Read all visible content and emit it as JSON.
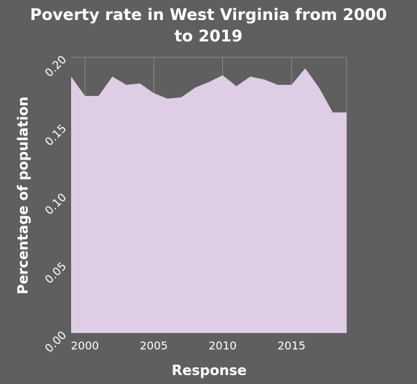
{
  "chart_data": {
    "type": "area",
    "title_lines": [
      "Poverty rate in West Virginia from 2000",
      "to 2019"
    ],
    "xlabel": "Response",
    "ylabel": "Percentage of population",
    "x": [
      1999,
      2000,
      2001,
      2002,
      2003,
      2004,
      2005,
      2006,
      2007,
      2008,
      2009,
      2010,
      2011,
      2012,
      2013,
      2014,
      2015,
      2016,
      2017,
      2018,
      2019
    ],
    "values": [
      0.186,
      0.172,
      0.172,
      0.186,
      0.18,
      0.181,
      0.174,
      0.17,
      0.171,
      0.178,
      0.182,
      0.187,
      0.179,
      0.186,
      0.184,
      0.18,
      0.18,
      0.192,
      0.178,
      0.16,
      0.16
    ],
    "xlim": [
      1999,
      2019
    ],
    "ylim": [
      0,
      0.2
    ],
    "xticks": [
      2000,
      2005,
      2010,
      2015
    ],
    "xtick_labels": [
      "2000",
      "2005",
      "2010",
      "2015"
    ],
    "yticks": [
      0,
      0.05,
      0.1,
      0.15,
      0.2
    ],
    "ytick_labels": [
      "0.00",
      "0.05",
      "0.10",
      "0.15",
      "0.20"
    ],
    "grid": true,
    "colors": {
      "background": "#5f5f5f",
      "area": "#dfcde6",
      "grid": "#8a8a8a",
      "text": "#ffffff"
    }
  }
}
